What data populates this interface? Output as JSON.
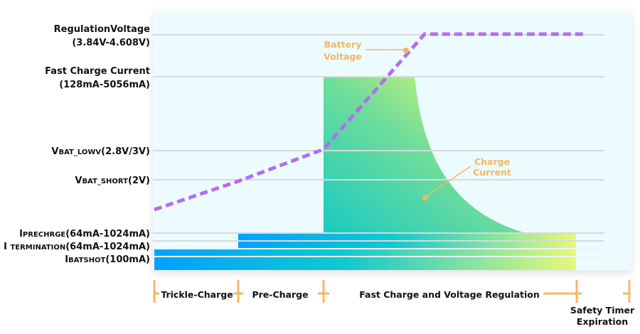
{
  "labels": {
    "regulation_voltage": {
      "line1": "RegulationVoltage",
      "line2": "(3.84V-4.608V)"
    },
    "fast_charge_current": {
      "line1": "Fast Charge Current",
      "line2": "(128mA-5056mA)"
    },
    "vbat_lowv": {
      "main": "V",
      "sub": "BAT_LOWV",
      "value": "(2.8V/3V)"
    },
    "vbat_short": {
      "main": "V",
      "sub": "BAT_SHORT",
      "value": "(2V)"
    },
    "iprechrge": {
      "main": "I",
      "sub": "PRECHRGE",
      "value": "(64mA-1024mA)"
    },
    "itermination": {
      "main": "I ",
      "sub": "TERMINATION",
      "value": "(64mA-1024mA)"
    },
    "ibatshot": {
      "main": "I",
      "sub": "BATSHOT",
      "value": "(100mA)"
    }
  },
  "annotations": {
    "battery_voltage": {
      "line1": "Battery",
      "line2": "Voltage"
    },
    "charge_current": {
      "line1": "Charge",
      "line2": "Current"
    }
  },
  "phases": [
    "Trickle-Charge",
    "Pre-Charge",
    "Fast Charge and Voltage Regulation"
  ],
  "safety": {
    "line1": "Safety Timer",
    "line2": "Expiration"
  },
  "colors": {
    "voltage_line": "#b36ef0",
    "annotation": "#f3b766",
    "panel": "#ecfbfd",
    "gradient_start": "#00a6ff",
    "gradient_end": "#e8f870"
  }
}
